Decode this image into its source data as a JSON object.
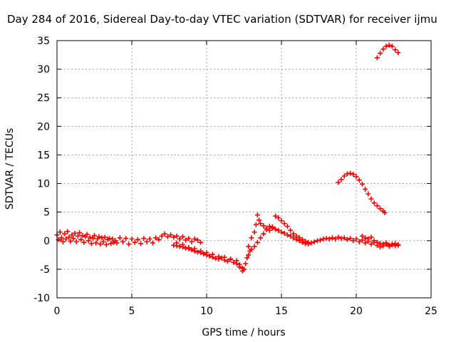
{
  "chart_data": {
    "type": "scatter",
    "title": "Day 284 of 2016, Sidereal Day-to-day VTEC variation (SDTVAR) for receiver ijmu",
    "xlabel": "GPS time / hours",
    "ylabel": "SDTVAR / TECUs",
    "xlim": [
      0,
      25
    ],
    "ylim": [
      -10,
      35
    ],
    "xticks": [
      0,
      5,
      10,
      15,
      20,
      25
    ],
    "yticks": [
      -10,
      -5,
      0,
      5,
      10,
      15,
      20,
      25,
      30,
      35
    ],
    "grid": true,
    "marker": "plus",
    "color": "#ff0000",
    "series": [
      {
        "points": [
          [
            0.0,
            1.0
          ],
          [
            0.1,
            0.2
          ],
          [
            0.2,
            1.5
          ],
          [
            0.3,
            0.5
          ],
          [
            0.4,
            -0.2
          ],
          [
            0.5,
            1.2
          ],
          [
            0.6,
            0.3
          ],
          [
            0.7,
            1.6
          ],
          [
            0.8,
            0.6
          ],
          [
            0.9,
            -0.1
          ],
          [
            1.0,
            1.0
          ],
          [
            1.1,
            0.4
          ],
          [
            1.2,
            1.3
          ],
          [
            1.3,
            -0.2
          ],
          [
            1.4,
            0.8
          ],
          [
            1.5,
            1.4
          ],
          [
            1.6,
            0.2
          ],
          [
            1.7,
            0.9
          ],
          [
            1.8,
            -0.3
          ],
          [
            1.9,
            0.7
          ],
          [
            2.0,
            1.1
          ],
          [
            2.1,
            0.0
          ],
          [
            2.2,
            0.6
          ],
          [
            2.3,
            -0.5
          ],
          [
            2.4,
            0.4
          ],
          [
            2.5,
            0.9
          ],
          [
            2.6,
            -0.4
          ],
          [
            2.7,
            0.3
          ],
          [
            2.8,
            0.7
          ],
          [
            2.9,
            -0.6
          ],
          [
            3.0,
            0.5
          ],
          [
            3.1,
            -0.2
          ],
          [
            3.2,
            0.6
          ],
          [
            3.3,
            -0.7
          ],
          [
            3.4,
            0.2
          ],
          [
            3.5,
            0.4
          ],
          [
            3.6,
            -0.5
          ],
          [
            3.7,
            0.3
          ],
          [
            3.8,
            -0.3
          ],
          [
            3.9,
            0.0
          ],
          [
            4.0,
            -0.4
          ],
          [
            4.2,
            0.5
          ],
          [
            4.4,
            -0.2
          ],
          [
            4.6,
            0.4
          ],
          [
            4.8,
            -0.6
          ],
          [
            5.0,
            0.3
          ],
          [
            5.2,
            -0.3
          ],
          [
            5.4,
            0.2
          ],
          [
            5.6,
            -0.5
          ],
          [
            5.8,
            0.4
          ],
          [
            6.0,
            -0.2
          ],
          [
            6.2,
            0.3
          ],
          [
            6.4,
            -0.4
          ],
          [
            6.6,
            0.5
          ],
          [
            6.8,
            0.2
          ],
          [
            7.0,
            0.8
          ],
          [
            7.2,
            1.2
          ],
          [
            7.4,
            0.7
          ],
          [
            7.6,
            1.0
          ],
          [
            7.8,
            0.6
          ],
          [
            8.0,
            0.8
          ],
          [
            8.2,
            0.3
          ],
          [
            8.4,
            0.7
          ],
          [
            8.6,
            0.1
          ],
          [
            8.8,
            0.4
          ],
          [
            9.0,
            -0.2
          ],
          [
            9.2,
            0.3
          ],
          [
            9.4,
            0.1
          ],
          [
            9.6,
            -0.3
          ]
        ]
      },
      {
        "points": [
          [
            7.8,
            -0.8
          ],
          [
            8.0,
            -0.9
          ],
          [
            8.2,
            -1.0
          ],
          [
            8.4,
            -1.1
          ],
          [
            8.6,
            -1.3
          ],
          [
            8.8,
            -1.4
          ],
          [
            9.0,
            -1.6
          ],
          [
            9.2,
            -1.8
          ],
          [
            9.4,
            -2.0
          ],
          [
            9.6,
            -2.1
          ],
          [
            9.8,
            -2.3
          ],
          [
            10.0,
            -2.5
          ],
          [
            10.2,
            -2.7
          ],
          [
            10.4,
            -2.9
          ],
          [
            10.6,
            -3.1
          ],
          [
            10.8,
            -3.2
          ],
          [
            11.0,
            -3.0
          ],
          [
            11.2,
            -3.4
          ],
          [
            11.4,
            -3.6
          ],
          [
            11.6,
            -3.3
          ],
          [
            11.8,
            -3.8
          ],
          [
            12.0,
            -4.0
          ],
          [
            12.2,
            -4.6
          ],
          [
            12.4,
            -5.3
          ],
          [
            12.5,
            -5.0
          ],
          [
            12.6,
            -4.0
          ],
          [
            12.7,
            -3.0
          ],
          [
            12.8,
            -2.5
          ],
          [
            12.9,
            -1.8
          ],
          [
            13.0,
            -1.5
          ],
          [
            13.2,
            -1.0
          ],
          [
            13.4,
            -0.3
          ],
          [
            13.6,
            0.5
          ],
          [
            13.8,
            1.2
          ],
          [
            14.0,
            1.9
          ],
          [
            14.2,
            2.5
          ],
          [
            14.4,
            2.2
          ],
          [
            14.6,
            2.0
          ],
          [
            14.8,
            1.8
          ],
          [
            15.0,
            1.5
          ],
          [
            15.2,
            1.3
          ],
          [
            15.4,
            1.0
          ],
          [
            15.6,
            0.8
          ],
          [
            15.8,
            0.5
          ],
          [
            16.0,
            0.2
          ],
          [
            16.2,
            0.0
          ],
          [
            16.4,
            -0.3
          ],
          [
            16.6,
            -0.5
          ],
          [
            16.8,
            -0.6
          ],
          [
            17.0,
            -0.4
          ],
          [
            17.2,
            -0.2
          ],
          [
            17.4,
            0.0
          ],
          [
            17.6,
            0.1
          ],
          [
            17.8,
            0.3
          ],
          [
            18.0,
            0.4
          ],
          [
            18.2,
            0.3
          ],
          [
            18.4,
            0.5
          ],
          [
            18.6,
            0.3
          ],
          [
            18.8,
            0.6
          ],
          [
            19.0,
            0.4
          ],
          [
            19.2,
            0.5
          ],
          [
            19.4,
            0.2
          ],
          [
            19.6,
            0.4
          ],
          [
            19.8,
            0.0
          ],
          [
            20.0,
            0.3
          ],
          [
            20.2,
            -0.2
          ],
          [
            20.4,
            0.1
          ],
          [
            20.6,
            -0.4
          ],
          [
            20.8,
            -0.1
          ],
          [
            21.0,
            -0.6
          ],
          [
            21.2,
            -0.3
          ],
          [
            21.4,
            -0.8
          ],
          [
            21.6,
            -0.5
          ],
          [
            21.8,
            -0.9
          ],
          [
            22.0,
            -0.6
          ],
          [
            22.2,
            -0.8
          ],
          [
            22.4,
            -0.7
          ],
          [
            22.6,
            -0.9
          ],
          [
            22.8,
            -0.8
          ]
        ]
      },
      {
        "points": [
          [
            8.0,
            -0.4
          ],
          [
            8.4,
            -0.7
          ],
          [
            8.8,
            -1.2
          ],
          [
            9.2,
            -1.4
          ],
          [
            9.6,
            -1.8
          ],
          [
            10.0,
            -2.1
          ],
          [
            10.4,
            -2.4
          ],
          [
            10.8,
            -2.8
          ],
          [
            11.2,
            -2.9
          ],
          [
            11.6,
            -3.2
          ],
          [
            12.0,
            -3.5
          ],
          [
            12.2,
            -4.2
          ],
          [
            12.4,
            -4.8
          ]
        ]
      },
      {
        "points": [
          [
            12.8,
            -1.0
          ],
          [
            13.0,
            0.5
          ],
          [
            13.2,
            1.5
          ],
          [
            13.3,
            2.8
          ],
          [
            13.4,
            4.5
          ],
          [
            13.5,
            3.6
          ],
          [
            13.6,
            3.0
          ],
          [
            13.8,
            2.6
          ],
          [
            14.0,
            2.2
          ],
          [
            14.2,
            1.8
          ],
          [
            14.4,
            2.4
          ],
          [
            14.6,
            4.3
          ],
          [
            14.8,
            4.0
          ],
          [
            15.0,
            3.5
          ],
          [
            15.2,
            3.0
          ],
          [
            15.4,
            2.5
          ],
          [
            15.6,
            1.8
          ],
          [
            15.8,
            1.2
          ],
          [
            16.0,
            0.8
          ],
          [
            16.2,
            0.5
          ],
          [
            16.4,
            0.2
          ],
          [
            16.6,
            -0.1
          ],
          [
            16.8,
            -0.3
          ]
        ]
      },
      {
        "points": [
          [
            18.8,
            10.2
          ],
          [
            19.0,
            10.7
          ],
          [
            19.2,
            11.3
          ],
          [
            19.4,
            11.7
          ],
          [
            19.6,
            11.8
          ],
          [
            19.8,
            11.6
          ],
          [
            20.0,
            11.2
          ],
          [
            20.2,
            10.6
          ],
          [
            20.4,
            9.9
          ],
          [
            20.6,
            9.0
          ],
          [
            20.8,
            8.2
          ],
          [
            21.0,
            7.3
          ],
          [
            21.2,
            6.6
          ],
          [
            21.4,
            6.1
          ],
          [
            21.6,
            5.6
          ],
          [
            21.8,
            5.2
          ],
          [
            21.9,
            4.9
          ]
        ]
      },
      {
        "points": [
          [
            20.4,
            0.8
          ],
          [
            20.6,
            0.5
          ],
          [
            20.8,
            0.3
          ],
          [
            21.0,
            0.6
          ],
          [
            21.2,
            0.0
          ],
          [
            21.4,
            -0.3
          ],
          [
            21.6,
            -1.1
          ],
          [
            21.8,
            -0.6
          ],
          [
            22.0,
            -0.4
          ],
          [
            22.2,
            -1.0
          ],
          [
            22.4,
            -0.6
          ],
          [
            22.6,
            -0.5
          ],
          [
            22.8,
            -0.7
          ]
        ]
      },
      {
        "points": [
          [
            21.4,
            32.0
          ],
          [
            21.6,
            32.8
          ],
          [
            21.8,
            33.5
          ],
          [
            22.0,
            34.0
          ],
          [
            22.2,
            34.2
          ],
          [
            22.4,
            34.0
          ],
          [
            22.6,
            33.4
          ],
          [
            22.8,
            32.9
          ]
        ]
      }
    ]
  }
}
